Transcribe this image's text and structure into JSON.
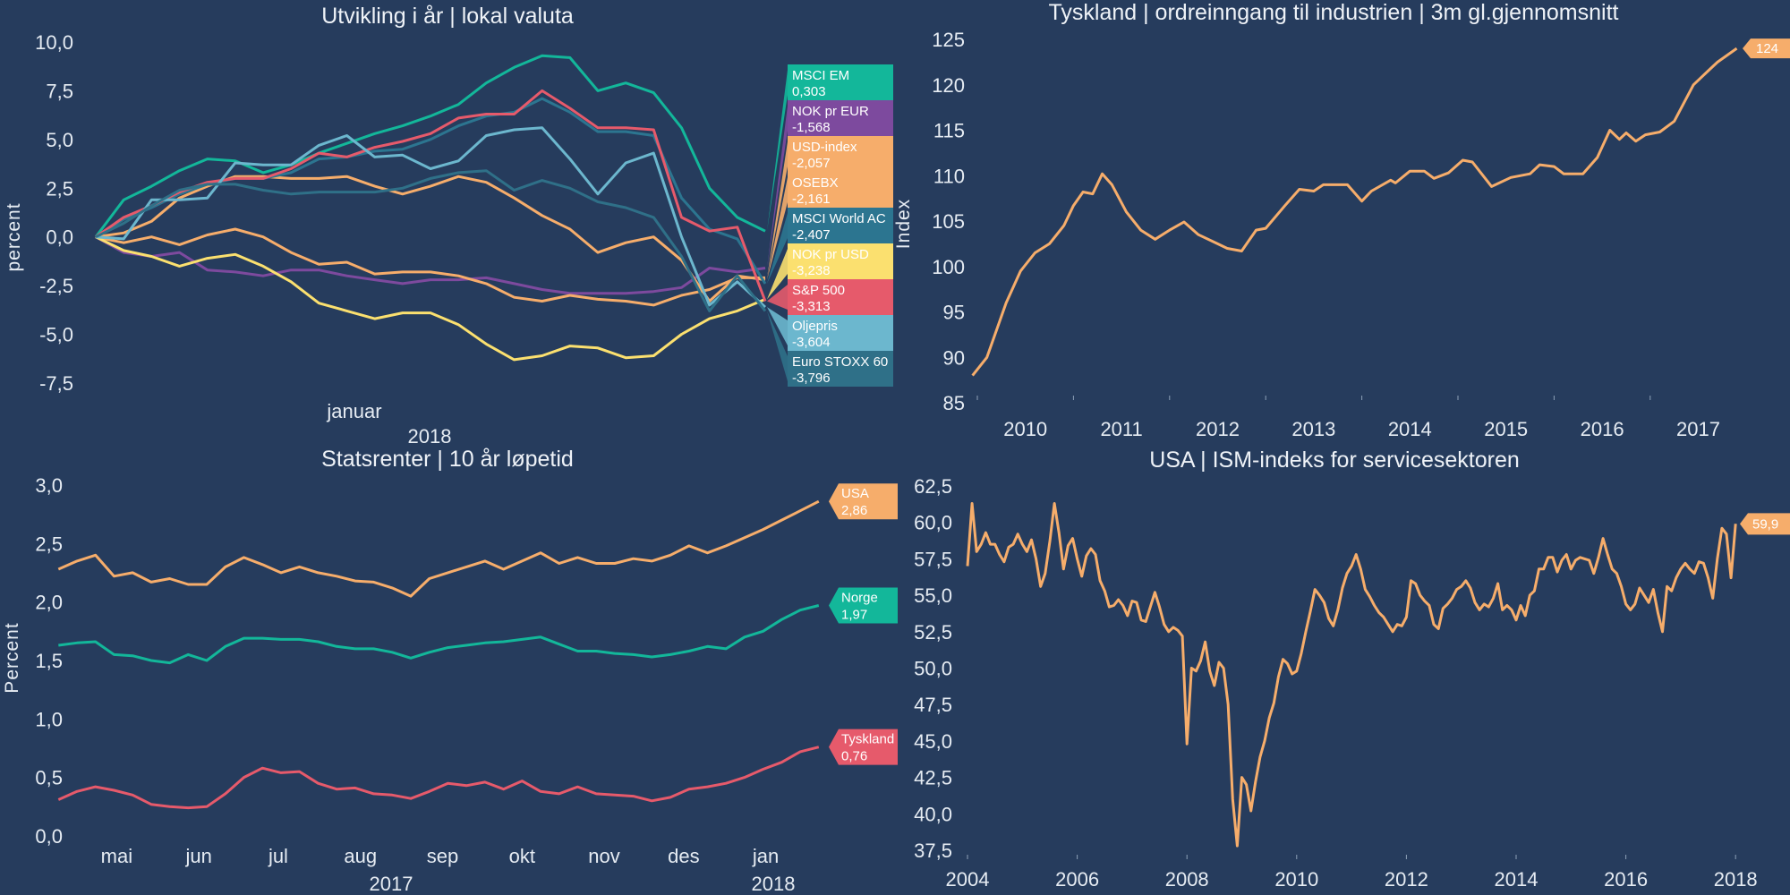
{
  "chart_data": [
    {
      "type": "line",
      "title": "Utvikling i år | lokal valuta",
      "ylabel": "percent",
      "xlabel": "",
      "x_ticks": [
        "januar"
      ],
      "x_year_label": "2018",
      "y_ticks": [
        "10,0",
        "7,5",
        "5,0",
        "2,5",
        "0,0",
        "-2,5",
        "-5,0",
        "-7,5"
      ],
      "ylim": [
        -7.5,
        10
      ],
      "grid": false,
      "legend": "right",
      "series": [
        {
          "name": "MSCI EM",
          "last_label": "0,303",
          "color": "#13b79a",
          "values": [
            0,
            1.9,
            2.6,
            3.4,
            4.0,
            3.9,
            3.3,
            3.7,
            4.3,
            4.8,
            5.3,
            5.7,
            6.2,
            6.8,
            7.9,
            8.7,
            9.3,
            9.2,
            7.5,
            7.9,
            7.4,
            5.6,
            2.5,
            1.0,
            0.3
          ]
        },
        {
          "name": "NOK pr EUR",
          "last_label": "-1,568",
          "color": "#7d4a9e",
          "values": [
            0,
            -0.8,
            -1.0,
            -0.8,
            -1.7,
            -1.8,
            -2.0,
            -1.7,
            -1.7,
            -2.0,
            -2.2,
            -2.4,
            -2.2,
            -2.2,
            -2.1,
            -2.4,
            -2.7,
            -2.9,
            -2.9,
            -2.9,
            -2.8,
            -2.6,
            -1.6,
            -1.8,
            -1.6
          ]
        },
        {
          "name": "USD-index",
          "last_label": "-2,057",
          "color": "#f6ad6b",
          "values": [
            0,
            -0.3,
            0.0,
            -0.4,
            0.1,
            0.4,
            0.0,
            -0.8,
            -1.4,
            -1.3,
            -1.9,
            -1.8,
            -1.8,
            -2.0,
            -2.4,
            -3.1,
            -3.3,
            -3.0,
            -3.2,
            -3.3,
            -3.5,
            -3.0,
            -2.7,
            -2.1,
            -2.1
          ]
        },
        {
          "name": "OSEBX",
          "last_label": "-2,161",
          "color": "#f6ad6b",
          "values": [
            0,
            0.2,
            0.8,
            2.0,
            2.6,
            3.1,
            3.1,
            3.0,
            3.0,
            3.1,
            2.6,
            2.2,
            2.6,
            3.1,
            2.8,
            2.0,
            1.1,
            0.4,
            -0.8,
            -0.3,
            0.0,
            -1.2,
            -3.3,
            -2.0,
            -2.2
          ]
        },
        {
          "name": "MSCI World AC",
          "last_label": "-2,407",
          "color": "#2c7590",
          "values": [
            0,
            0.9,
            1.5,
            2.2,
            2.7,
            3.0,
            3.0,
            3.3,
            4.0,
            4.1,
            4.4,
            4.5,
            5.0,
            5.7,
            6.2,
            6.4,
            7.1,
            6.4,
            5.4,
            5.4,
            5.2,
            2.0,
            0.4,
            -0.1,
            -2.4
          ]
        },
        {
          "name": "NOK pr USD",
          "last_label": "-3,238",
          "color": "#fbe06f",
          "values": [
            0,
            -0.7,
            -1.0,
            -1.5,
            -1.1,
            -0.9,
            -1.5,
            -2.3,
            -3.4,
            -3.8,
            -4.2,
            -3.9,
            -3.9,
            -4.5,
            -5.5,
            -6.3,
            -6.1,
            -5.6,
            -5.7,
            -6.2,
            -6.1,
            -5.0,
            -4.2,
            -3.8,
            -3.2
          ]
        },
        {
          "name": "S&P 500",
          "last_label": "-3,313",
          "color": "#e65a6b",
          "values": [
            0,
            1.0,
            1.6,
            2.3,
            2.8,
            3.0,
            3.0,
            3.5,
            4.3,
            4.1,
            4.6,
            4.9,
            5.3,
            6.1,
            6.3,
            6.3,
            7.5,
            6.6,
            5.6,
            5.6,
            5.5,
            1.0,
            0.3,
            0.5,
            -3.3
          ]
        },
        {
          "name": "Oljepris",
          "last_label": "-3,604",
          "color": "#6cb7ce",
          "values": [
            0,
            -0.1,
            1.9,
            1.9,
            2.0,
            3.8,
            3.7,
            3.7,
            4.7,
            5.2,
            4.1,
            4.2,
            3.5,
            3.9,
            5.2,
            5.5,
            5.6,
            4.0,
            2.2,
            3.8,
            4.3,
            0.0,
            -3.5,
            -2.3,
            -3.6
          ]
        },
        {
          "name": "Euro STOXX 60",
          "last_label": "-3,796",
          "color": "#2f7088",
          "values": [
            0,
            0.7,
            1.6,
            2.4,
            2.7,
            2.7,
            2.4,
            2.2,
            2.3,
            2.3,
            2.3,
            2.5,
            3.0,
            3.3,
            3.4,
            2.4,
            2.9,
            2.5,
            1.8,
            1.5,
            1.0,
            -1.0,
            -3.8,
            -2.0,
            -3.8
          ]
        }
      ]
    },
    {
      "type": "line",
      "title": "Tyskland | ordreinngang til industrien | 3m gl.gjennomsnitt",
      "ylabel": "Index",
      "xlabel": "",
      "x_ticks": [
        "2010",
        "2011",
        "2012",
        "2013",
        "2014",
        "2015",
        "2016",
        "2017"
      ],
      "y_ticks": [
        "125",
        "120",
        "115",
        "110",
        "105",
        "100",
        "95",
        "90",
        "85"
      ],
      "ylim": [
        85,
        125
      ],
      "grid": false,
      "series": [
        {
          "end_label": "124",
          "color": "#f6ad6b",
          "points": [
            [
              2009.95,
              88
            ],
            [
              2010.1,
              90
            ],
            [
              2010.3,
              96
            ],
            [
              2010.45,
              99.5
            ],
            [
              2010.6,
              101.5
            ],
            [
              2010.75,
              102.5
            ],
            [
              2010.9,
              104.5
            ],
            [
              2011.0,
              106.7
            ],
            [
              2011.1,
              108.2
            ],
            [
              2011.2,
              108
            ],
            [
              2011.3,
              110.2
            ],
            [
              2011.4,
              109
            ],
            [
              2011.55,
              106
            ],
            [
              2011.7,
              104
            ],
            [
              2011.85,
              103
            ],
            [
              2012.0,
              104
            ],
            [
              2012.15,
              104.9
            ],
            [
              2012.3,
              103.5
            ],
            [
              2012.5,
              102.5
            ],
            [
              2012.6,
              102
            ],
            [
              2012.75,
              101.7
            ],
            [
              2012.9,
              104
            ],
            [
              2013.0,
              104.2
            ],
            [
              2013.2,
              106.7
            ],
            [
              2013.35,
              108.5
            ],
            [
              2013.5,
              108.3
            ],
            [
              2013.6,
              109
            ],
            [
              2013.85,
              109
            ],
            [
              2014.0,
              107.2
            ],
            [
              2014.1,
              108.3
            ],
            [
              2014.3,
              109.5
            ],
            [
              2014.35,
              109.2
            ],
            [
              2014.5,
              110.5
            ],
            [
              2014.65,
              110.5
            ],
            [
              2014.75,
              109.7
            ],
            [
              2014.9,
              110.3
            ],
            [
              2015.05,
              111.7
            ],
            [
              2015.15,
              111.5
            ],
            [
              2015.35,
              108.8
            ],
            [
              2015.55,
              109.8
            ],
            [
              2015.75,
              110.2
            ],
            [
              2015.85,
              111.2
            ],
            [
              2016.0,
              111
            ],
            [
              2016.1,
              110.2
            ],
            [
              2016.3,
              110.2
            ],
            [
              2016.45,
              112
            ],
            [
              2016.58,
              115
            ],
            [
              2016.68,
              114
            ],
            [
              2016.75,
              114.7
            ],
            [
              2016.85,
              113.8
            ],
            [
              2016.95,
              114.5
            ],
            [
              2017.1,
              114.8
            ],
            [
              2017.25,
              116
            ],
            [
              2017.45,
              120
            ],
            [
              2017.6,
              121.5
            ],
            [
              2017.7,
              122.5
            ],
            [
              2017.9,
              124
            ]
          ]
        }
      ]
    },
    {
      "type": "line",
      "title": "Statsrenter | 10 år løpetid",
      "ylabel": "Percent",
      "xlabel": "",
      "x_ticks": [
        {
          "label": "mai",
          "date": "2017-05-16"
        },
        {
          "label": "jun",
          "date": "2017-06-16"
        },
        {
          "label": "jul",
          "date": "2017-07-16"
        },
        {
          "label": "aug",
          "date": "2017-08-16"
        },
        {
          "label": "sep",
          "date": "2017-09-16"
        },
        {
          "label": "okt",
          "date": "2017-10-16"
        },
        {
          "label": "nov",
          "date": "2017-11-16"
        },
        {
          "label": "des",
          "date": "2017-12-16"
        },
        {
          "label": "jan",
          "date": "2018-01-16"
        }
      ],
      "x_year_labels": [
        "2017",
        "2018"
      ],
      "y_ticks": [
        "3,0",
        "2,5",
        "2,0",
        "1,5",
        "1,0",
        "0,5",
        "0,0"
      ],
      "ylim": [
        0,
        3
      ],
      "grid": false,
      "dates": [
        "2017-04-24",
        "2017-05-01",
        "2017-05-08",
        "2017-05-15",
        "2017-05-22",
        "2017-05-29",
        "2017-06-05",
        "2017-06-12",
        "2017-06-19",
        "2017-06-26",
        "2017-07-03",
        "2017-07-10",
        "2017-07-17",
        "2017-07-24",
        "2017-07-31",
        "2017-08-07",
        "2017-08-14",
        "2017-08-21",
        "2017-08-28",
        "2017-09-04",
        "2017-09-11",
        "2017-09-18",
        "2017-09-25",
        "2017-10-02",
        "2017-10-09",
        "2017-10-16",
        "2017-10-23",
        "2017-10-30",
        "2017-11-06",
        "2017-11-13",
        "2017-11-20",
        "2017-11-27",
        "2017-12-04",
        "2017-12-11",
        "2017-12-18",
        "2017-12-25",
        "2018-01-01",
        "2018-01-08",
        "2018-01-15",
        "2018-01-22",
        "2018-01-29",
        "2018-02-05"
      ],
      "series": [
        {
          "name": "USA",
          "last_label": "2,86",
          "color": "#f6ad6b",
          "values": [
            2.28,
            2.35,
            2.4,
            2.22,
            2.25,
            2.17,
            2.2,
            2.15,
            2.15,
            2.3,
            2.38,
            2.32,
            2.25,
            2.3,
            2.25,
            2.22,
            2.18,
            2.17,
            2.12,
            2.05,
            2.2,
            2.25,
            2.3,
            2.35,
            2.28,
            2.35,
            2.42,
            2.33,
            2.38,
            2.33,
            2.33,
            2.37,
            2.35,
            2.4,
            2.48,
            2.42,
            2.48,
            2.55,
            2.62,
            2.7,
            2.78,
            2.86
          ]
        },
        {
          "name": "Norge",
          "last_label": "1,97",
          "color": "#13b79a",
          "values": [
            1.63,
            1.65,
            1.66,
            1.55,
            1.54,
            1.5,
            1.48,
            1.55,
            1.5,
            1.62,
            1.69,
            1.69,
            1.68,
            1.68,
            1.66,
            1.62,
            1.6,
            1.6,
            1.57,
            1.52,
            1.57,
            1.61,
            1.63,
            1.65,
            1.66,
            1.68,
            1.7,
            1.64,
            1.58,
            1.58,
            1.56,
            1.55,
            1.53,
            1.55,
            1.58,
            1.62,
            1.6,
            1.7,
            1.75,
            1.85,
            1.93,
            1.97
          ]
        },
        {
          "name": "Tyskland",
          "last_label": "0,76",
          "color": "#e65a6b",
          "values": [
            0.31,
            0.38,
            0.42,
            0.39,
            0.35,
            0.27,
            0.25,
            0.24,
            0.25,
            0.36,
            0.5,
            0.58,
            0.54,
            0.55,
            0.45,
            0.4,
            0.41,
            0.36,
            0.35,
            0.32,
            0.38,
            0.45,
            0.43,
            0.46,
            0.4,
            0.47,
            0.38,
            0.36,
            0.42,
            0.36,
            0.35,
            0.34,
            0.3,
            0.33,
            0.4,
            0.42,
            0.45,
            0.5,
            0.57,
            0.63,
            0.72,
            0.76
          ]
        }
      ]
    },
    {
      "type": "line",
      "title": "USA | ISM-indeks for servicesektoren",
      "ylabel": "",
      "xlabel": "",
      "x_ticks": [
        "2004",
        "2006",
        "2008",
        "2010",
        "2012",
        "2014",
        "2016",
        "2018"
      ],
      "y_ticks": [
        "62,5",
        "60,0",
        "57,5",
        "55,0",
        "52,5",
        "50,0",
        "47,5",
        "45,0",
        "42,5",
        "40,0",
        "37,5"
      ],
      "ylim": [
        37.5,
        62.5
      ],
      "grid": false,
      "start": "2004-01",
      "frequency": "monthly",
      "series": [
        {
          "end_label": "59,9",
          "color": "#f6ad6b",
          "values": [
            57,
            61.3,
            58,
            58.5,
            59.3,
            58.5,
            58.5,
            57.8,
            57.3,
            58.3,
            58.5,
            59.2,
            58.5,
            58,
            58.8,
            57.5,
            55.6,
            56.5,
            58.7,
            61.3,
            59.3,
            56.8,
            58.4,
            58.9,
            57.5,
            56.3,
            57.7,
            58.2,
            57.8,
            56,
            55.3,
            54.2,
            54.3,
            54.7,
            54.3,
            53.6,
            54.6,
            54.5,
            53.3,
            53.2,
            54.2,
            55.2,
            54.2,
            53,
            52.5,
            52.8,
            52.6,
            52.2,
            44.8,
            50,
            49.8,
            50.5,
            51.8,
            49.8,
            48.8,
            50.4,
            50,
            47.5,
            41,
            37.8,
            42.5,
            42,
            40.2,
            42.2,
            43.9,
            45,
            46.6,
            47.6,
            49.4,
            50.6,
            50.3,
            49.6,
            49.8,
            51,
            52.5,
            53.9,
            55.4,
            55,
            54.5,
            53.4,
            52.9,
            54,
            55.5,
            56.5,
            57,
            57.8,
            56.8,
            55.4,
            54.9,
            54.3,
            53.8,
            53.5,
            53,
            52.5,
            53,
            52.9,
            53.5,
            56,
            55.8,
            55,
            54.6,
            54.3,
            53,
            52.7,
            54.1,
            54.4,
            54.8,
            55.4,
            55.6,
            56,
            55.5,
            54.5,
            54,
            54.4,
            54.2,
            54.8,
            55.8,
            54,
            54.3,
            54,
            53.3,
            54.3,
            53.6,
            55,
            55.3,
            56.8,
            56.8,
            57.6,
            57.6,
            56.6,
            57.4,
            57.8,
            56.8,
            57.4,
            57.6,
            57.5,
            57.4,
            56.5,
            57.6,
            58.9,
            57.8,
            56.8,
            56.5,
            55.6,
            54.4,
            54,
            54.4,
            55.5,
            55,
            54.5,
            55.4,
            53.8,
            52.5,
            55.6,
            55.3,
            56.2,
            56.8,
            57.2,
            56.8,
            56.5,
            57.3,
            57.2,
            56.2,
            54.8,
            57.5,
            59.6,
            59.2,
            56.2,
            59.9
          ]
        }
      ]
    }
  ]
}
